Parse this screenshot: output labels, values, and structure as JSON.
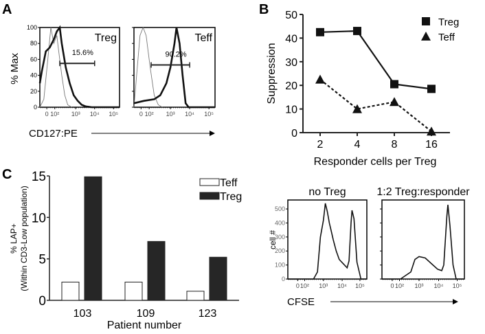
{
  "chart_data": [
    {
      "panel": "A",
      "type": "line",
      "ylabel": "% Max",
      "xlabel": "CD127:PE",
      "ylim": [
        0,
        100
      ],
      "yticks": [
        0,
        20,
        40,
        60,
        80,
        100
      ],
      "xlim": [
        0,
        4
      ],
      "xticks": [
        {
          "label": "0",
          "pos": 0.35
        },
        {
          "label": "10²",
          "pos": 0.75
        },
        {
          "label": "10³",
          "pos": 1.8
        },
        {
          "label": "10⁴",
          "pos": 2.75
        },
        {
          "label": "10⁵",
          "pos": 3.7
        }
      ],
      "plots": [
        {
          "title": "Treg",
          "gate_label": "15.6%",
          "gate": [
            1.0,
            2.75,
            55
          ],
          "sample": [
            [
              0,
              30
            ],
            [
              0.1,
              45
            ],
            [
              0.3,
              70
            ],
            [
              0.5,
              75
            ],
            [
              0.7,
              85
            ],
            [
              0.85,
              95
            ],
            [
              1.0,
              100
            ],
            [
              1.1,
              80
            ],
            [
              1.3,
              50
            ],
            [
              1.5,
              30
            ],
            [
              1.7,
              15
            ],
            [
              1.9,
              8
            ],
            [
              2.1,
              3
            ],
            [
              2.3,
              1
            ],
            [
              2.6,
              0
            ],
            [
              4,
              0
            ]
          ],
          "control": [
            [
              0,
              0
            ],
            [
              0.2,
              10
            ],
            [
              0.4,
              60
            ],
            [
              0.55,
              100
            ],
            [
              0.7,
              80
            ],
            [
              0.85,
              90
            ],
            [
              0.95,
              70
            ],
            [
              1.1,
              40
            ],
            [
              1.25,
              15
            ],
            [
              1.4,
              3
            ],
            [
              1.6,
              0
            ]
          ]
        },
        {
          "title": "Teff",
          "gate_label": "90.2%",
          "gate": [
            0.85,
            2.75,
            53
          ],
          "sample": [
            [
              0,
              5
            ],
            [
              0.5,
              8
            ],
            [
              1,
              10
            ],
            [
              1.3,
              15
            ],
            [
              1.6,
              30
            ],
            [
              1.8,
              50
            ],
            [
              2.0,
              80
            ],
            [
              2.1,
              100
            ],
            [
              2.25,
              80
            ],
            [
              2.4,
              40
            ],
            [
              2.55,
              5
            ],
            [
              2.7,
              0
            ],
            [
              4,
              0
            ]
          ],
          "control": [
            [
              0,
              0
            ],
            [
              0.1,
              30
            ],
            [
              0.3,
              90
            ],
            [
              0.45,
              100
            ],
            [
              0.6,
              90
            ],
            [
              0.8,
              50
            ],
            [
              1.0,
              15
            ],
            [
              1.2,
              3
            ],
            [
              1.4,
              0
            ]
          ]
        }
      ]
    },
    {
      "panel": "B",
      "type": "line",
      "categories": [
        "2",
        "4",
        "8",
        "16"
      ],
      "series": [
        {
          "name": "Treg",
          "values": [
            42.5,
            43,
            20.5,
            18.5
          ],
          "marker": "square",
          "dash": false
        },
        {
          "name": "Teff",
          "values": [
            22.5,
            10,
            13,
            0.5
          ],
          "marker": "triangle",
          "dash": true
        }
      ],
      "ylabel": "Suppression",
      "xlabel": "Responder cells per Treg",
      "ylim": [
        0,
        50
      ],
      "yticks": [
        0,
        10,
        20,
        30,
        40,
        50
      ],
      "legend": "top-right"
    },
    {
      "panel": "C",
      "type": "bar",
      "categories": [
        "103",
        "109",
        "123"
      ],
      "series": [
        {
          "name": "Teff",
          "values": [
            2.2,
            2.2,
            1.1
          ],
          "color": "#ffffff"
        },
        {
          "name": "Treg",
          "values": [
            14.9,
            7.1,
            5.2
          ],
          "color": "#262626"
        }
      ],
      "ylabel": "% LAP+",
      "ylabel2": "(Within CD3-Low population)",
      "xlabel": "Patient number",
      "ylim": [
        0,
        15
      ],
      "yticks": [
        0,
        5,
        10,
        15
      ],
      "legend": "top-right"
    },
    {
      "panel": "D",
      "type": "line",
      "ylabel": "cell #",
      "xlabel": "CFSE",
      "ylim": [
        0,
        564
      ],
      "yticks": [
        0,
        100,
        200,
        300,
        400,
        500
      ],
      "xlim": [
        0,
        4
      ],
      "xticks": [
        {
          "label": "0",
          "pos": 0.5
        },
        {
          "label": "10²",
          "pos": 0.85
        },
        {
          "label": "10³",
          "pos": 1.8
        },
        {
          "label": "10⁴",
          "pos": 2.75
        },
        {
          "label": "10⁵",
          "pos": 3.65
        }
      ],
      "plots": [
        {
          "title": "no Treg",
          "sample": [
            [
              0,
              0
            ],
            [
              1.3,
              0
            ],
            [
              1.5,
              50
            ],
            [
              1.65,
              300
            ],
            [
              1.8,
              420
            ],
            [
              1.9,
              540
            ],
            [
              2.0,
              480
            ],
            [
              2.1,
              400
            ],
            [
              2.2,
              340
            ],
            [
              2.3,
              280
            ],
            [
              2.45,
              200
            ],
            [
              2.6,
              140
            ],
            [
              2.8,
              110
            ],
            [
              3.0,
              80
            ],
            [
              3.1,
              130
            ],
            [
              3.2,
              400
            ],
            [
              3.25,
              490
            ],
            [
              3.35,
              430
            ],
            [
              3.5,
              120
            ],
            [
              3.7,
              0
            ],
            [
              4,
              0
            ]
          ]
        },
        {
          "title": "1:2 Treg:responder",
          "sample": [
            [
              0,
              0
            ],
            [
              0.9,
              0
            ],
            [
              1.1,
              20
            ],
            [
              1.4,
              50
            ],
            [
              1.6,
              140
            ],
            [
              1.8,
              160
            ],
            [
              2.1,
              150
            ],
            [
              2.4,
              110
            ],
            [
              2.7,
              70
            ],
            [
              2.9,
              60
            ],
            [
              3.0,
              100
            ],
            [
              3.15,
              450
            ],
            [
              3.2,
              530
            ],
            [
              3.3,
              380
            ],
            [
              3.45,
              100
            ],
            [
              3.6,
              0
            ],
            [
              4,
              0
            ]
          ]
        }
      ]
    }
  ],
  "panels": {
    "a": "A",
    "b": "B",
    "c": "C"
  }
}
